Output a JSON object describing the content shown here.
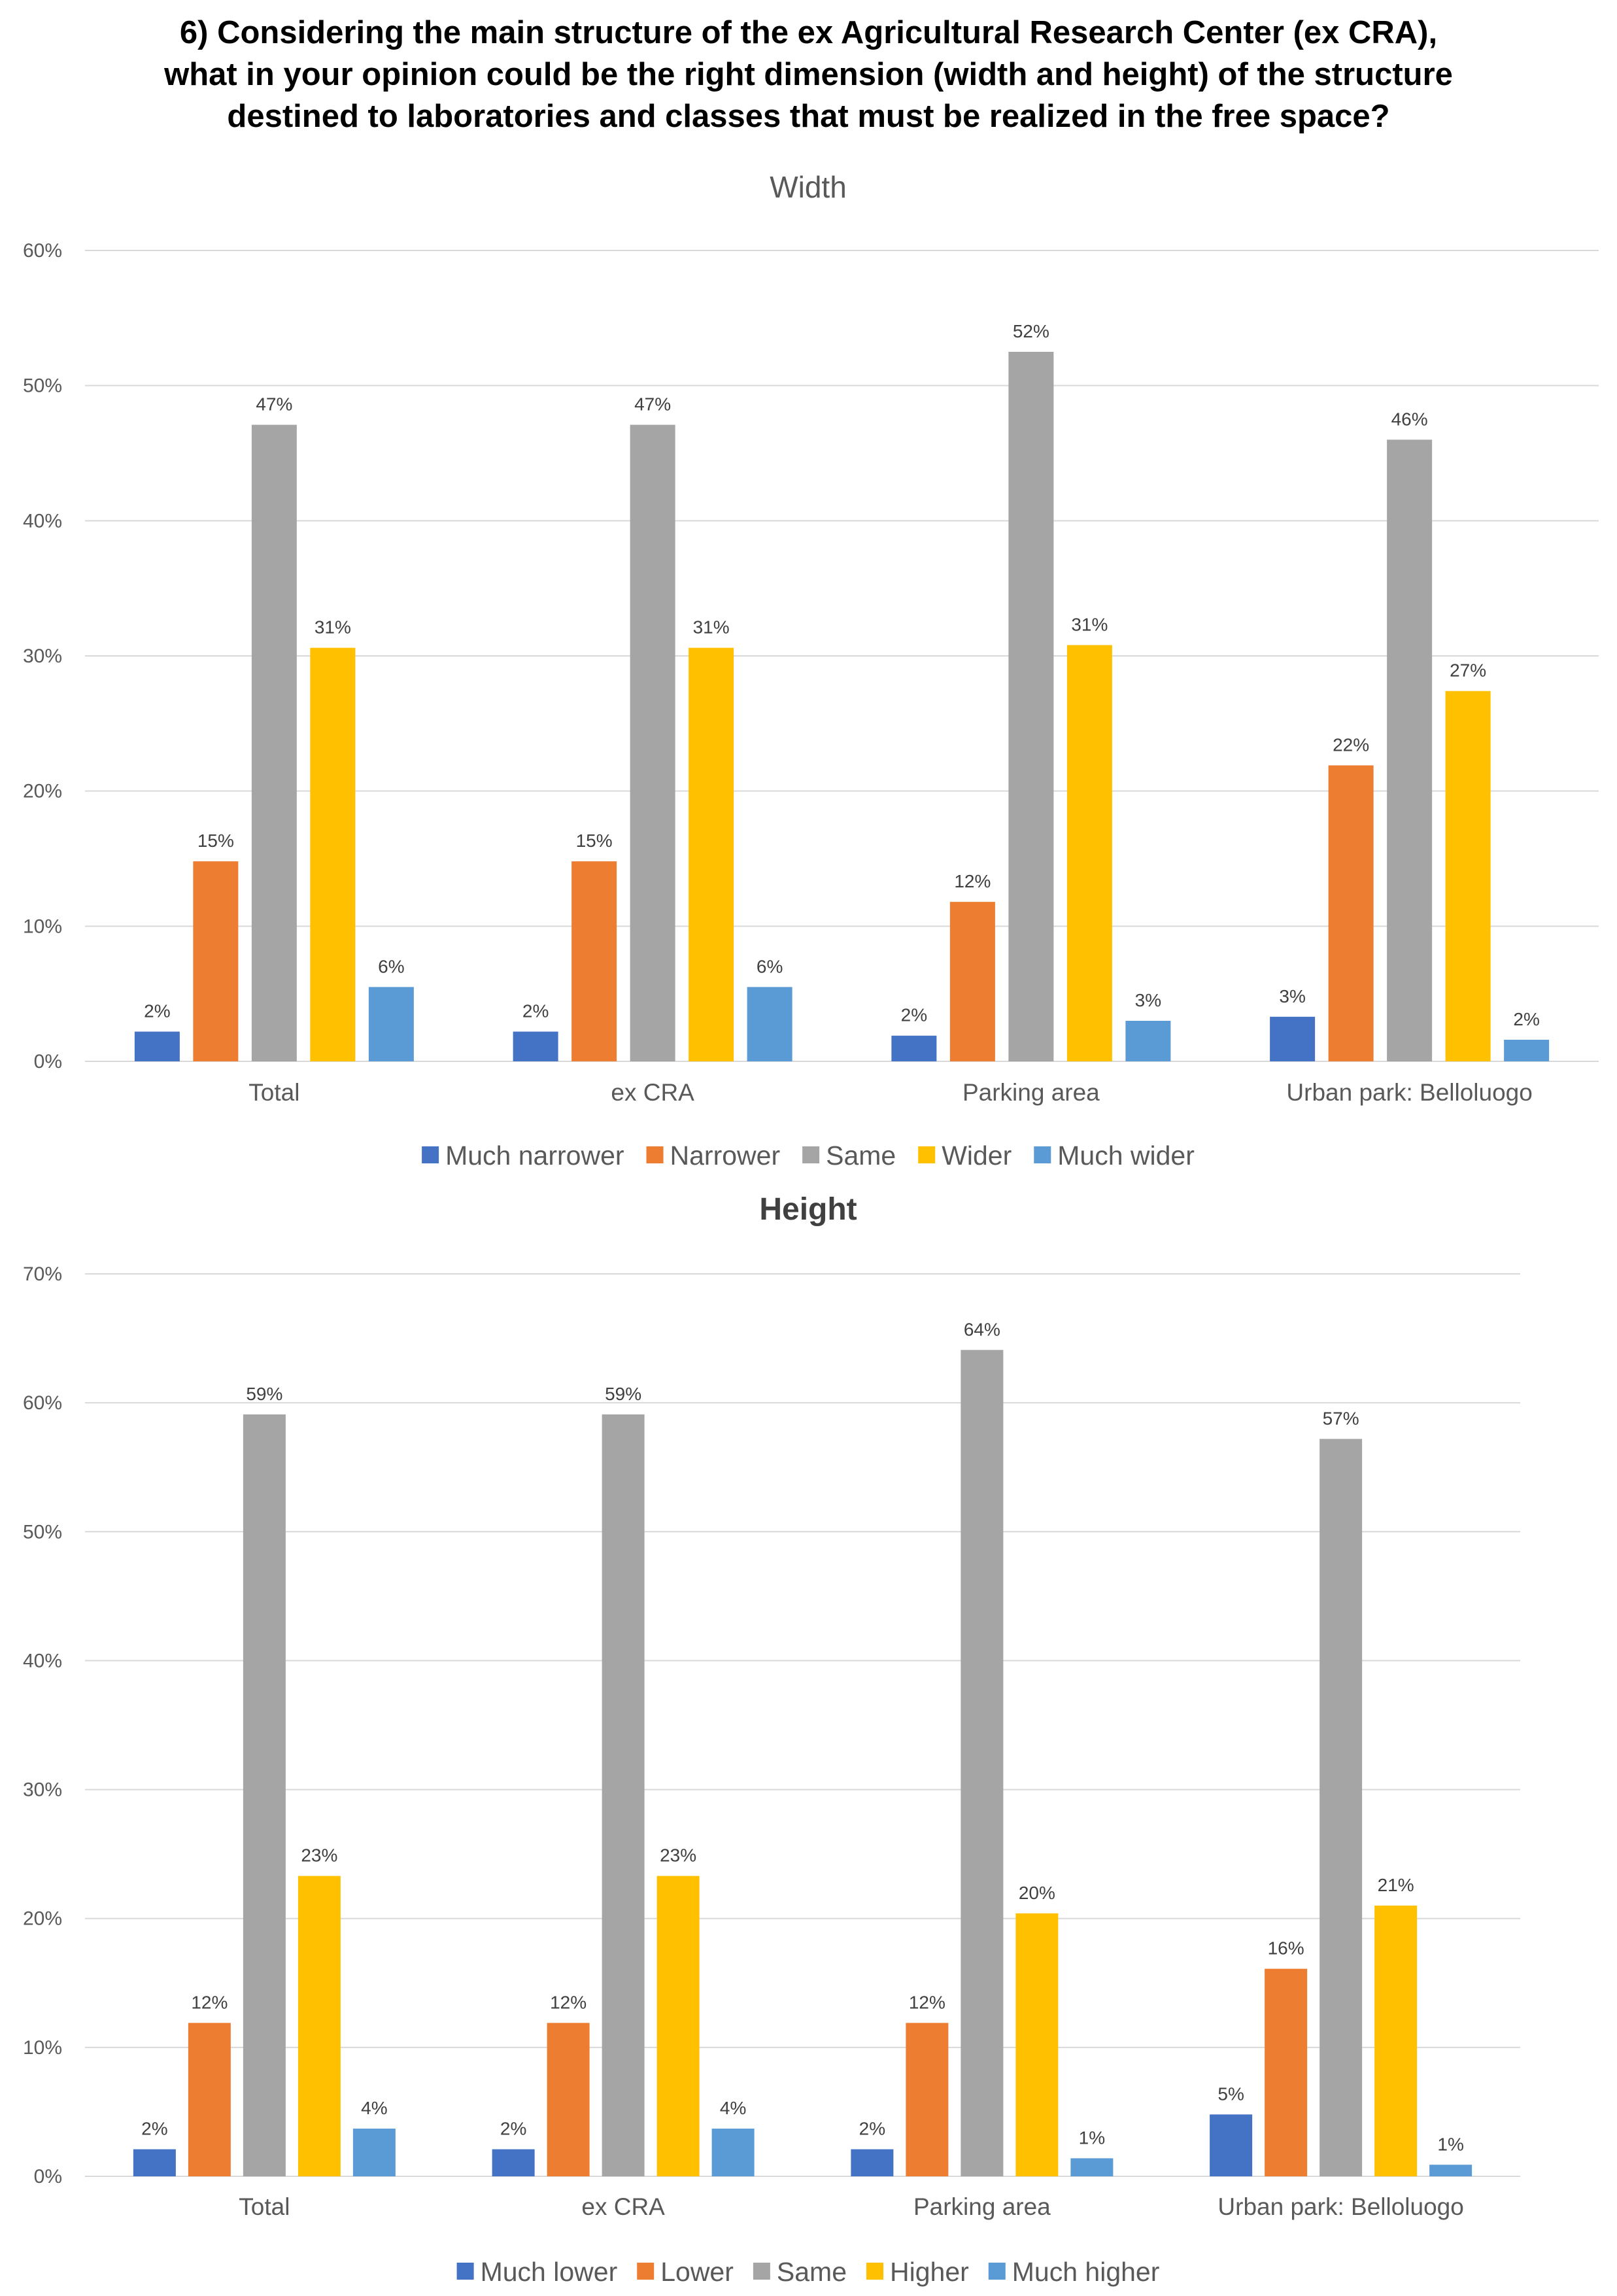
{
  "title_lines": [
    "6) Considering the main structure of the ex Agricultural Research Center (ex CRA),",
    "what in your opinion could be the right dimension (width and height) of the structure",
    "destined to laboratories and classes that must be realized in the free space?"
  ],
  "chart_data": [
    {
      "type": "bar",
      "title": "Width",
      "title_bold": false,
      "categories": [
        "Total",
        "ex CRA",
        "Parking area",
        "Urban park: Belloluogo"
      ],
      "ylim": [
        0,
        60
      ],
      "yticks": [
        0,
        10,
        20,
        30,
        40,
        50,
        60
      ],
      "ytick_labels": [
        "0%",
        "10%",
        "20%",
        "30%",
        "40%",
        "50%",
        "60%"
      ],
      "xlabel": "",
      "ylabel": "",
      "grid": true,
      "legend_position": "bottom",
      "series": [
        {
          "name": "Much narrower",
          "color": "#4472C4",
          "values": [
            2.2,
            2.2,
            1.9,
            3.3
          ],
          "labels": [
            "2%",
            "2%",
            "2%",
            "3%"
          ]
        },
        {
          "name": "Narrower",
          "color": "#ED7D31",
          "values": [
            14.8,
            14.8,
            11.8,
            21.9
          ],
          "labels": [
            "15%",
            "15%",
            "12%",
            "22%"
          ]
        },
        {
          "name": "Same",
          "color": "#A5A5A5",
          "values": [
            47.1,
            47.1,
            52.5,
            46.0
          ],
          "labels": [
            "47%",
            "47%",
            "52%",
            "46%"
          ]
        },
        {
          "name": "Wider",
          "color": "#FFC000",
          "values": [
            30.6,
            30.6,
            30.8,
            27.4
          ],
          "labels": [
            "31%",
            "31%",
            "31%",
            "27%"
          ]
        },
        {
          "name": "Much wider",
          "color": "#5B9BD5",
          "values": [
            5.5,
            5.5,
            3.0,
            1.6
          ],
          "labels": [
            "6%",
            "6%",
            "3%",
            "2%"
          ]
        }
      ]
    },
    {
      "type": "bar",
      "title": "Height",
      "title_bold": true,
      "categories": [
        "Total",
        "ex CRA",
        "Parking area",
        "Urban park: Belloluogo"
      ],
      "ylim": [
        0,
        70
      ],
      "yticks": [
        0,
        10,
        20,
        30,
        40,
        50,
        60,
        70
      ],
      "ytick_labels": [
        "0%",
        "10%",
        "20%",
        "30%",
        "40%",
        "50%",
        "60%",
        "70%"
      ],
      "xlabel": "",
      "ylabel": "",
      "grid": true,
      "legend_position": "bottom",
      "series": [
        {
          "name": "Much lower",
          "color": "#4472C4",
          "values": [
            2.1,
            2.1,
            2.1,
            4.8
          ],
          "labels": [
            "2%",
            "2%",
            "2%",
            "5%"
          ]
        },
        {
          "name": "Lower",
          "color": "#ED7D31",
          "values": [
            11.9,
            11.9,
            11.9,
            16.1
          ],
          "labels": [
            "12%",
            "12%",
            "12%",
            "16%"
          ]
        },
        {
          "name": "Same",
          "color": "#A5A5A5",
          "values": [
            59.1,
            59.1,
            64.1,
            57.2
          ],
          "labels": [
            "59%",
            "59%",
            "64%",
            "57%"
          ]
        },
        {
          "name": "Higher",
          "color": "#FFC000",
          "values": [
            23.3,
            23.3,
            20.4,
            21.0
          ],
          "labels": [
            "23%",
            "23%",
            "20%",
            "21%"
          ]
        },
        {
          "name": "Much higher",
          "color": "#5B9BD5",
          "values": [
            3.7,
            3.7,
            1.4,
            0.9
          ],
          "labels": [
            "4%",
            "4%",
            "1%",
            "1%"
          ]
        }
      ]
    }
  ]
}
